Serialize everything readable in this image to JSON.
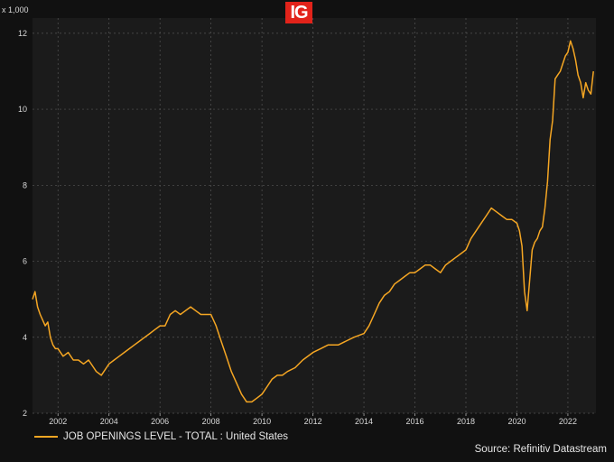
{
  "logo": {
    "text": "IG",
    "color": "#e2231a"
  },
  "source": "Source: Refinitiv Datastream",
  "chart_data": {
    "type": "line",
    "title": "",
    "xlabel": "",
    "ylabel": "",
    "y_unit_label": "x 1,000",
    "xlim": [
      2001.0,
      2023.1
    ],
    "ylim": [
      2,
      12.4
    ],
    "y_ticks": [
      2,
      4,
      6,
      8,
      10,
      12
    ],
    "x_ticks": [
      2002,
      2004,
      2006,
      2008,
      2010,
      2012,
      2014,
      2016,
      2018,
      2020,
      2022
    ],
    "grid": true,
    "legend_position": "bottom-left",
    "series": [
      {
        "name": "JOB OPENINGS LEVEL - TOTAL : United States",
        "color": "#f5a623",
        "x": [
          2001.0,
          2001.1,
          2001.2,
          2001.3,
          2001.5,
          2001.6,
          2001.7,
          2001.8,
          2001.9,
          2002.0,
          2002.2,
          2002.4,
          2002.6,
          2002.8,
          2003.0,
          2003.2,
          2003.4,
          2003.5,
          2003.7,
          2003.9,
          2004.0,
          2004.2,
          2004.4,
          2004.6,
          2004.8,
          2005.0,
          2005.2,
          2005.4,
          2005.6,
          2005.8,
          2006.0,
          2006.2,
          2006.4,
          2006.6,
          2006.8,
          2007.0,
          2007.2,
          2007.4,
          2007.6,
          2007.8,
          2008.0,
          2008.2,
          2008.4,
          2008.6,
          2008.8,
          2009.0,
          2009.2,
          2009.4,
          2009.6,
          2009.8,
          2010.0,
          2010.2,
          2010.4,
          2010.6,
          2010.8,
          2011.0,
          2011.3,
          2011.6,
          2012.0,
          2012.3,
          2012.6,
          2013.0,
          2013.3,
          2013.6,
          2014.0,
          2014.2,
          2014.4,
          2014.6,
          2014.8,
          2015.0,
          2015.2,
          2015.4,
          2015.6,
          2015.8,
          2016.0,
          2016.2,
          2016.4,
          2016.6,
          2016.8,
          2017.0,
          2017.2,
          2017.4,
          2017.6,
          2017.8,
          2018.0,
          2018.2,
          2018.4,
          2018.6,
          2018.8,
          2019.0,
          2019.2,
          2019.4,
          2019.6,
          2019.8,
          2020.0,
          2020.1,
          2020.2,
          2020.3,
          2020.4,
          2020.5,
          2020.6,
          2020.7,
          2020.8,
          2020.9,
          2021.0,
          2021.1,
          2021.2,
          2021.3,
          2021.4,
          2021.5,
          2021.6,
          2021.7,
          2021.8,
          2021.9,
          2022.0,
          2022.1,
          2022.2,
          2022.3,
          2022.4,
          2022.5,
          2022.6,
          2022.7,
          2022.8,
          2022.9,
          2023.0
        ],
        "values": [
          5.0,
          5.2,
          4.8,
          4.6,
          4.3,
          4.4,
          4.0,
          3.8,
          3.7,
          3.7,
          3.5,
          3.6,
          3.4,
          3.4,
          3.3,
          3.4,
          3.2,
          3.1,
          3.0,
          3.2,
          3.3,
          3.4,
          3.5,
          3.6,
          3.7,
          3.8,
          3.9,
          4.0,
          4.1,
          4.2,
          4.3,
          4.3,
          4.6,
          4.7,
          4.6,
          4.7,
          4.8,
          4.7,
          4.6,
          4.6,
          4.6,
          4.3,
          3.9,
          3.5,
          3.1,
          2.8,
          2.5,
          2.3,
          2.3,
          2.4,
          2.5,
          2.7,
          2.9,
          3.0,
          3.0,
          3.1,
          3.2,
          3.4,
          3.6,
          3.7,
          3.8,
          3.8,
          3.9,
          4.0,
          4.1,
          4.3,
          4.6,
          4.9,
          5.1,
          5.2,
          5.4,
          5.5,
          5.6,
          5.7,
          5.7,
          5.8,
          5.9,
          5.9,
          5.8,
          5.7,
          5.9,
          6.0,
          6.1,
          6.2,
          6.3,
          6.6,
          6.8,
          7.0,
          7.2,
          7.4,
          7.3,
          7.2,
          7.1,
          7.1,
          7.0,
          6.8,
          6.4,
          5.2,
          4.7,
          5.5,
          6.3,
          6.5,
          6.6,
          6.8,
          6.9,
          7.4,
          8.1,
          9.2,
          9.7,
          10.8,
          10.9,
          11.0,
          11.2,
          11.4,
          11.5,
          11.8,
          11.6,
          11.3,
          10.9,
          10.7,
          10.3,
          10.7,
          10.5,
          10.4,
          11.0
        ]
      }
    ]
  }
}
